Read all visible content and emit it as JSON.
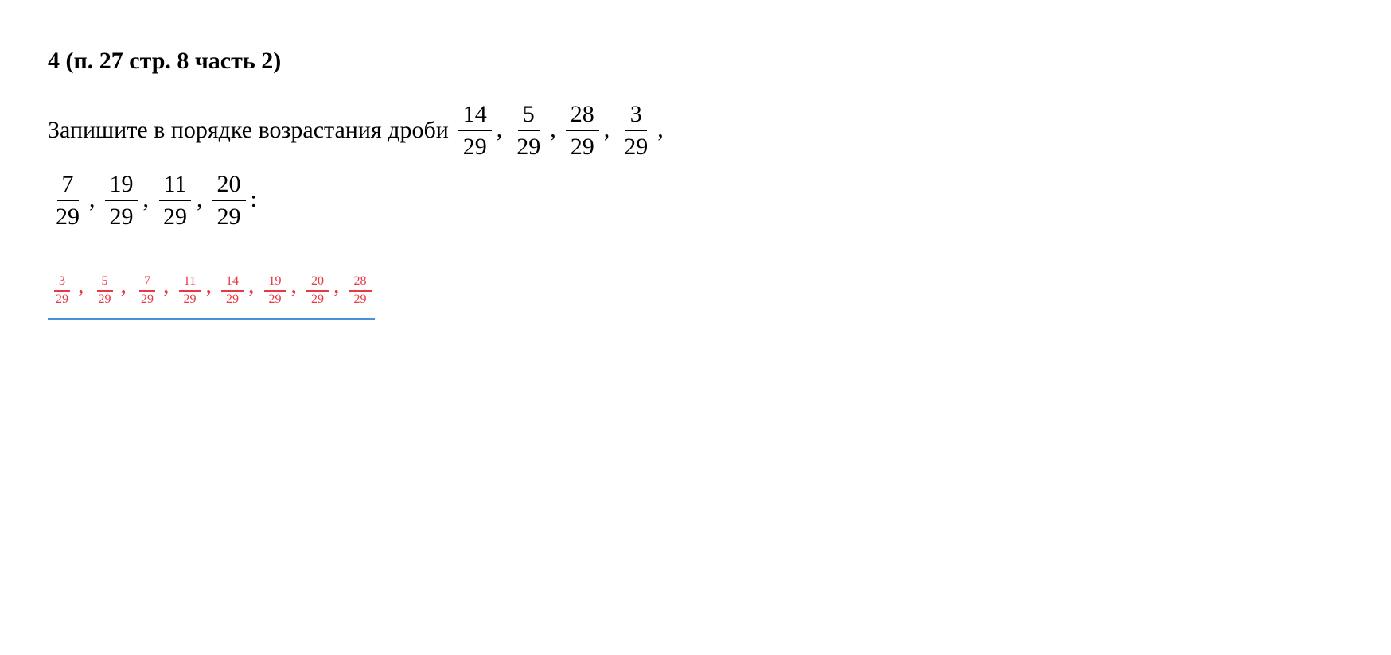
{
  "header": {
    "number": "4",
    "reference": "(п. 27 стр. 8 часть 2)"
  },
  "prompt": {
    "text_start": "Запишите в порядке возрастания дроби",
    "fractions_row1": [
      {
        "num": "14",
        "den": "29"
      },
      {
        "num": "5",
        "den": "29"
      },
      {
        "num": "28",
        "den": "29"
      },
      {
        "num": "3",
        "den": "29"
      }
    ],
    "fractions_row2": [
      {
        "num": "7",
        "den": "29"
      },
      {
        "num": "19",
        "den": "29"
      },
      {
        "num": "11",
        "den": "29"
      },
      {
        "num": "20",
        "den": "29"
      }
    ]
  },
  "answer": {
    "fractions": [
      {
        "num": "3",
        "den": "29"
      },
      {
        "num": "5",
        "den": "29"
      },
      {
        "num": "7",
        "den": "29"
      },
      {
        "num": "11",
        "den": "29"
      },
      {
        "num": "14",
        "den": "29"
      },
      {
        "num": "19",
        "den": "29"
      },
      {
        "num": "20",
        "den": "29"
      },
      {
        "num": "28",
        "den": "29"
      }
    ]
  },
  "styling": {
    "background_color": "#ffffff",
    "text_color": "#000000",
    "answer_color": "#e63946",
    "underline_color": "#4a90d9",
    "font_size": 30,
    "header_font_weight": "bold",
    "fraction_border_width": 2
  }
}
